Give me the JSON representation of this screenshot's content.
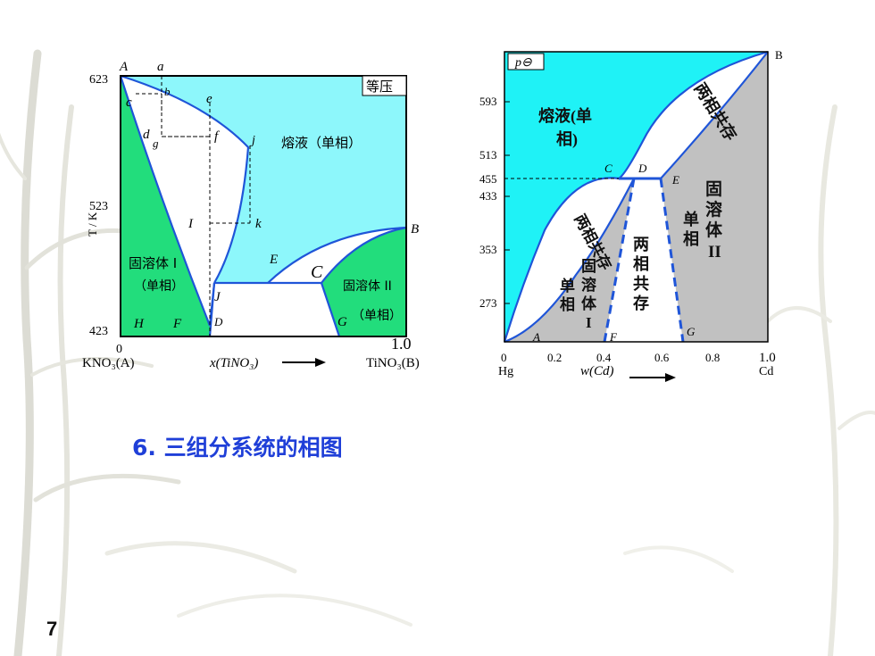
{
  "slide": {
    "heading": "6. 三组分系统的相图",
    "page_number": "7"
  },
  "diagram1": {
    "y_axis_label": "T / K",
    "y_ticks": [
      "623",
      "523",
      "423"
    ],
    "x_tick_left": "0",
    "x_tick_right": "1.0",
    "x_left_label": "KNO₃(A)",
    "x_axis_label": "x(TiNO₃)",
    "x_right_label": "TiNO₃(B)",
    "isobaric_label": "等压",
    "liquid_region": "熔液（单相）",
    "solid_solution_1": "固溶体 I",
    "solid_solution_1_sub": "（单相）",
    "solid_solution_2": "固溶体 II",
    "solid_solution_2_sub": "（单相）",
    "points": {
      "A": "A",
      "a": "a",
      "b": "b",
      "c": "c",
      "d": "d",
      "g": "g",
      "e": "e",
      "f": "f",
      "j": "j",
      "I": "I",
      "k": "k",
      "B": "B",
      "E": "E",
      "C": "C",
      "J": "J",
      "H": "H",
      "F": "F",
      "D": "D",
      "G": "G"
    },
    "colors": {
      "liquid": "#8df7fb",
      "solid": "#22dd7c",
      "curve": "#1f55d8"
    }
  },
  "diagram2": {
    "pressure_label": "p⊖",
    "y_ticks": [
      "593",
      "513",
      "455",
      "433",
      "353",
      "273"
    ],
    "x_ticks": [
      "0",
      "0.2",
      "0.4",
      "0.6",
      "0.8",
      "1.0"
    ],
    "x_left_label": "Hg",
    "x_axis_label": "w(Cd)",
    "x_right_label": "Cd",
    "liquid_region": [
      "熔液(单",
      "相)"
    ],
    "two_phase_upper": "两相共存",
    "two_phase_left": "两相共存",
    "two_phase_mid": [
      "两",
      "相",
      "共",
      "存"
    ],
    "solid_1": [
      "固",
      "溶",
      "体",
      "I"
    ],
    "single_phase_1": [
      "单",
      "相"
    ],
    "solid_2": [
      "固",
      "溶",
      "体",
      "II"
    ],
    "single_phase_2": [
      "单",
      "相"
    ],
    "points": {
      "A": "A",
      "B": "B",
      "C": "C",
      "D": "D",
      "E": "E",
      "F": "F",
      "G": "G"
    },
    "colors": {
      "liquid": "#1ff2f6",
      "solid": "#c1c1c1",
      "curve": "#1f55d8"
    }
  }
}
